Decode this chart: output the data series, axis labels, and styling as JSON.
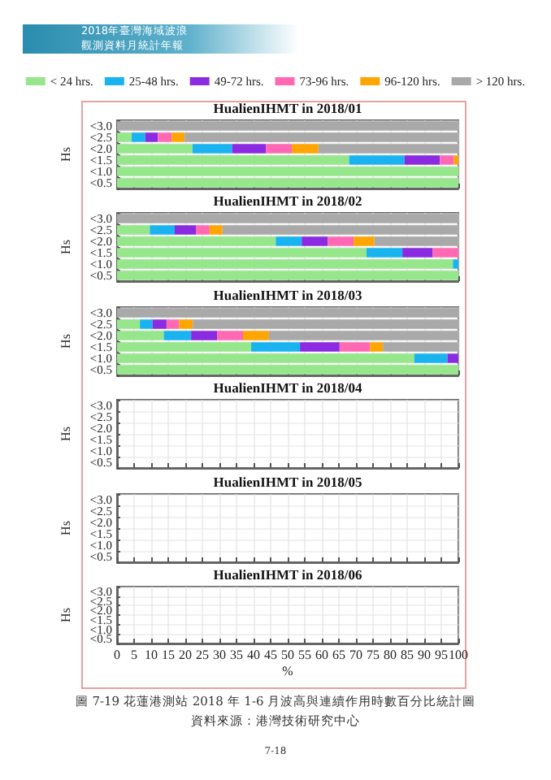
{
  "chart_data": [
    {
      "type": "bar",
      "orientation": "horizontal",
      "stacked": true,
      "title": "HualienIHMT in 2018/01",
      "ylabel": "Hs",
      "legend": "top",
      "grid": true,
      "tick_labels": "y",
      "xlim": [
        0,
        100
      ],
      "xticks": [
        0,
        5,
        10,
        15,
        20,
        25,
        30,
        35,
        40,
        45,
        50,
        55,
        60,
        65,
        70,
        75,
        80,
        85,
        90,
        95,
        100
      ],
      "annotations": [
        "2018年臺灣海域波浪",
        "觀測資料月統計年報"
      ],
      "categories": [
        "<3.0",
        "<2.5",
        "<2.0",
        "<1.5",
        "<1.0",
        "<0.5"
      ],
      "series": [
        {
          "name": "< 24 hrs.",
          "color": "#96e68c",
          "values": [
            0,
            4.3,
            22.1,
            68.0,
            100,
            100
          ]
        },
        {
          "name": "25-48 hrs.",
          "color": "#19b4f0",
          "values": [
            0,
            4.0,
            11.6,
            16.2,
            0,
            0
          ]
        },
        {
          "name": "49-72 hrs.",
          "color": "#8a2be2",
          "values": [
            0,
            3.7,
            9.9,
            10.4,
            0,
            0
          ]
        },
        {
          "name": "73-96 hrs.",
          "color": "#ff69b4",
          "values": [
            0,
            4.0,
            7.6,
            4.1,
            0,
            0
          ]
        },
        {
          "name": "96-120 hrs.",
          "color": "#ffa500",
          "values": [
            0,
            3.8,
            7.8,
            1.3,
            0,
            0
          ]
        },
        {
          "name": "> 120 hrs.",
          "color": "#a9a9a9",
          "values": [
            100,
            80.2,
            41.0,
            0,
            0,
            0
          ]
        }
      ]
    },
    {
      "type": "bar",
      "orientation": "horizontal",
      "stacked": true,
      "title": "HualienIHMT in 2018/02",
      "ylabel": "Hs",
      "grid": true,
      "tick_labels": "y",
      "xlim": [
        0,
        100
      ],
      "xticks": [
        0,
        5,
        10,
        15,
        20,
        25,
        30,
        35,
        40,
        45,
        50,
        55,
        60,
        65,
        70,
        75,
        80,
        85,
        90,
        95,
        100
      ],
      "categories": [
        "<3.0",
        "<2.5",
        "<2.0",
        "<1.5",
        "<1.0",
        "<0.5"
      ],
      "series": [
        {
          "color": "#96e68c",
          "values": [
            0,
            9.6,
            46.5,
            73.1,
            98.4,
            100
          ]
        },
        {
          "color": "#19b4f0",
          "values": [
            0,
            7.3,
            7.6,
            10.5,
            1.6,
            0
          ]
        },
        {
          "color": "#8a2be2",
          "values": [
            0,
            6.2,
            7.6,
            8.9,
            0,
            0
          ]
        },
        {
          "color": "#ff69b4",
          "values": [
            0,
            4.0,
            7.6,
            7.5,
            0,
            0
          ]
        },
        {
          "color": "#ffa500",
          "values": [
            0,
            3.8,
            6.1,
            0,
            0,
            0
          ]
        },
        {
          "color": "#a9a9a9",
          "values": [
            100,
            69.1,
            24.6,
            0,
            0,
            0
          ]
        }
      ]
    },
    {
      "type": "bar",
      "orientation": "horizontal",
      "stacked": true,
      "title": "HualienIHMT in 2018/03",
      "ylabel": "Hs",
      "grid": true,
      "tick_labels": "y",
      "xlim": [
        0,
        100
      ],
      "xticks": [
        0,
        5,
        10,
        15,
        20,
        25,
        30,
        35,
        40,
        45,
        50,
        55,
        60,
        65,
        70,
        75,
        80,
        85,
        90,
        95,
        100
      ],
      "categories": [
        "<3.0",
        "<2.5",
        "<2.0",
        "<1.5",
        "<1.0",
        "<0.5"
      ],
      "series": [
        {
          "color": "#96e68c",
          "values": [
            0,
            6.7,
            13.7,
            39.3,
            87.1,
            100
          ]
        },
        {
          "color": "#19b4f0",
          "values": [
            0,
            3.7,
            8.0,
            14.3,
            9.7,
            0
          ]
        },
        {
          "color": "#8a2be2",
          "values": [
            0,
            4.1,
            7.6,
            11.6,
            3.2,
            0
          ]
        },
        {
          "color": "#ff69b4",
          "values": [
            0,
            3.7,
            7.6,
            8.9,
            0,
            0
          ]
        },
        {
          "color": "#ffa500",
          "values": [
            0,
            4.0,
            7.6,
            3.8,
            0,
            0
          ]
        },
        {
          "color": "#a9a9a9",
          "values": [
            100,
            77.8,
            55.5,
            22.1,
            0,
            0
          ]
        }
      ]
    },
    {
      "type": "bar",
      "orientation": "horizontal",
      "stacked": true,
      "title": "HualienIHMT in 2018/04",
      "ylabel": "Hs",
      "grid": true,
      "tick_labels": "y",
      "xlim": [
        0,
        100
      ],
      "xticks": [
        0,
        5,
        10,
        15,
        20,
        25,
        30,
        35,
        40,
        45,
        50,
        55,
        60,
        65,
        70,
        75,
        80,
        85,
        90,
        95,
        100
      ],
      "categories": [
        "<3.0",
        "<2.5",
        "<2.0",
        "<1.5",
        "<1.0",
        "<0.5"
      ],
      "values": [
        null,
        null,
        null,
        null,
        null,
        null
      ]
    },
    {
      "type": "bar",
      "orientation": "horizontal",
      "stacked": true,
      "title": "HualienIHMT in 2018/05",
      "ylabel": "Hs",
      "grid": true,
      "tick_labels": "y",
      "xlim": [
        0,
        100
      ],
      "xticks": [
        0,
        5,
        10,
        15,
        20,
        25,
        30,
        35,
        40,
        45,
        50,
        55,
        60,
        65,
        70,
        75,
        80,
        85,
        90,
        95,
        100
      ],
      "categories": [
        "<3.0",
        "<2.5",
        "<2.0",
        "<1.5",
        "<1.0",
        "<0.5"
      ],
      "values": [
        null,
        null,
        null,
        null,
        null,
        null
      ]
    },
    {
      "type": "bar",
      "orientation": "horizontal",
      "stacked": true,
      "title": "HualienIHMT in 2018/06",
      "ylabel": "Hs",
      "xlabel": "%",
      "grid": true,
      "xlim": [
        0,
        100
      ],
      "xticks": [
        0,
        5,
        10,
        15,
        20,
        25,
        30,
        35,
        40,
        45,
        50,
        55,
        60,
        65,
        70,
        75,
        80,
        85,
        90,
        95,
        100
      ],
      "annotations": [
        "圖 7-19 花蓮港測站 2018 年 1-6 月波高與連續作用時數百分比統計圖",
        "資料來源：港灣技術研究中心",
        "7-18"
      ],
      "categories": [
        "<3.0",
        "<2.5",
        "<2.0",
        "<1.5",
        "<1.0",
        "<0.5"
      ],
      "values": [
        null,
        null,
        null,
        null,
        null,
        null
      ]
    }
  ]
}
